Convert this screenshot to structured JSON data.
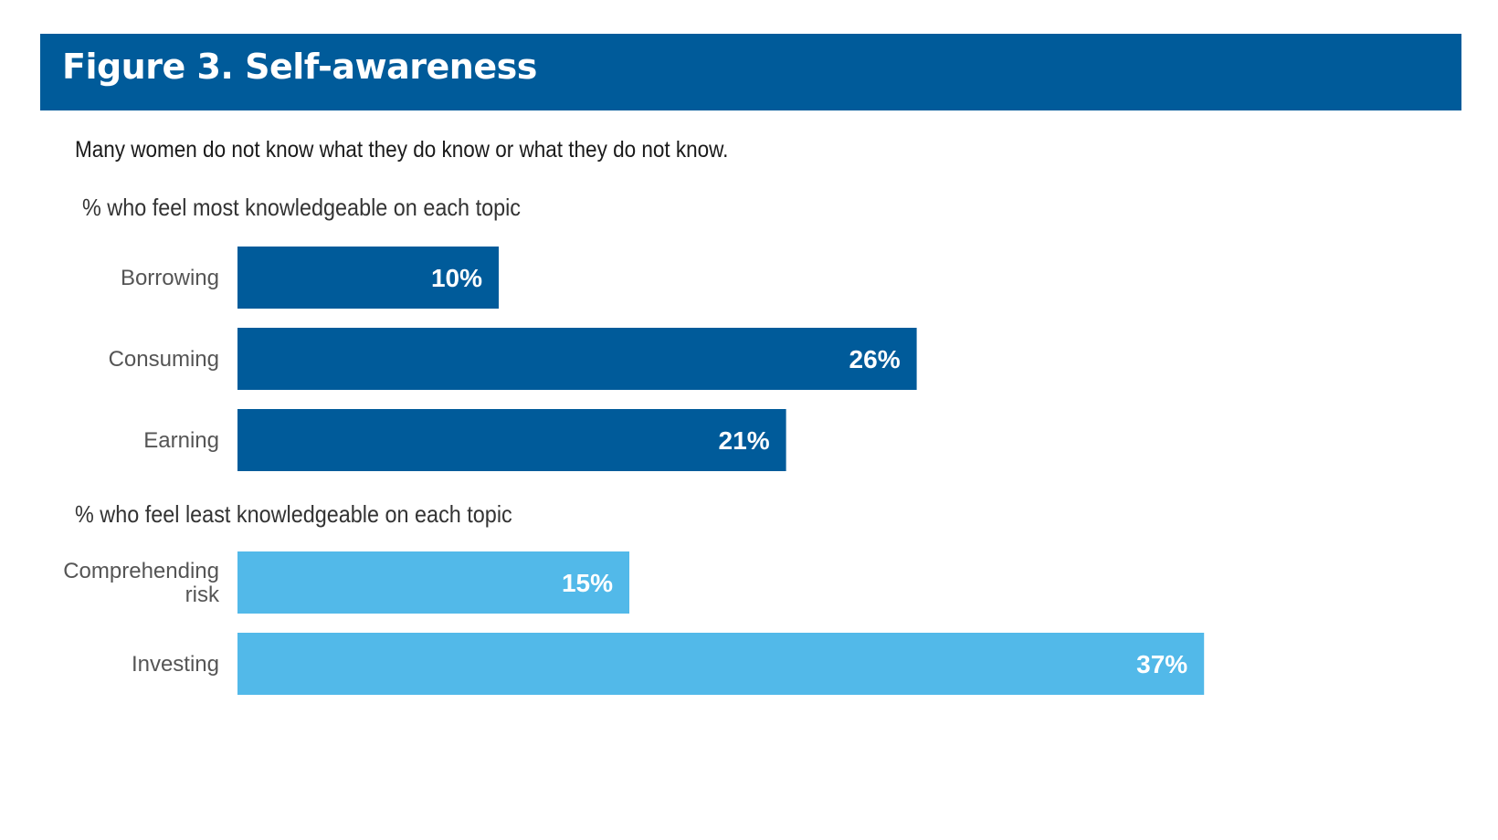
{
  "header": {
    "title": "Figure 3. Self-awareness"
  },
  "subtitle": "Many women do not know what they do know or what they do not know.",
  "colors": {
    "header_band": "#005b9a",
    "most_bar": "#005b9a",
    "least_bar": "#52b9e9",
    "category_text": "#555555",
    "value_text": "#ffffff"
  },
  "chart_data": [
    {
      "type": "bar",
      "orientation": "horizontal",
      "title": "% who feel most knowledgeable on each topic",
      "categories": [
        "Borrowing",
        "Consuming",
        "Earning"
      ],
      "values": [
        10,
        26,
        21
      ],
      "value_labels": [
        "10%",
        "26%",
        "21%"
      ],
      "color": "#005b9a",
      "xlim": [
        0,
        40
      ],
      "grid": false
    },
    {
      "type": "bar",
      "orientation": "horizontal",
      "title": "% who feel least knowledgeable on each topic",
      "categories": [
        [
          "Comprehending",
          "risk"
        ],
        [
          "Investing"
        ]
      ],
      "values": [
        15,
        37
      ],
      "value_labels": [
        "15%",
        "37%"
      ],
      "color": "#52b9e9",
      "xlim": [
        0,
        40
      ],
      "grid": false
    }
  ]
}
